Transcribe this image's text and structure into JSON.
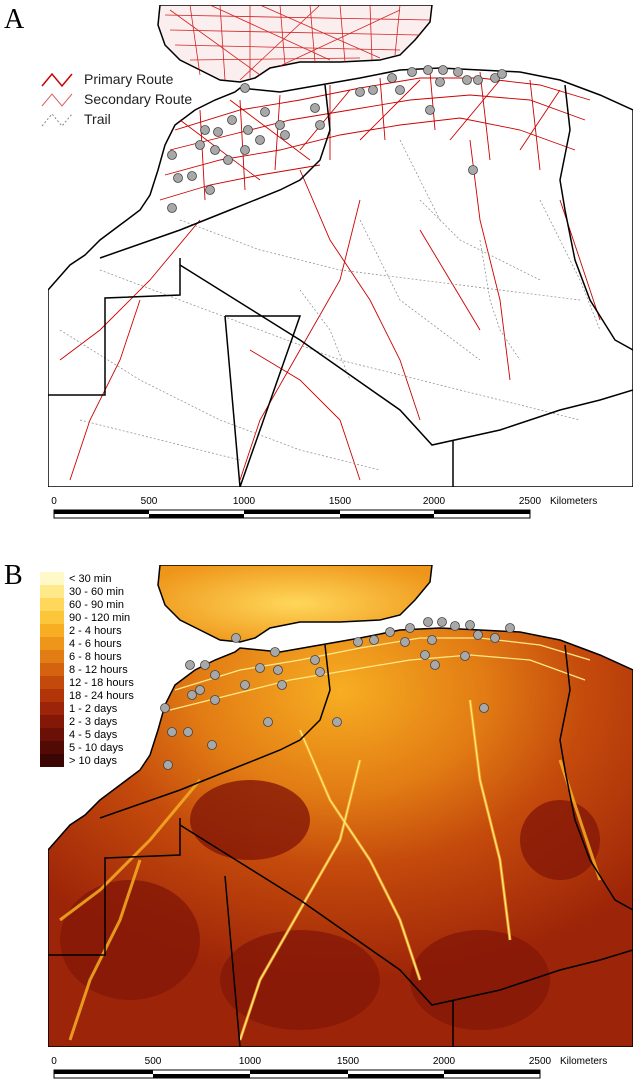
{
  "panel_a": {
    "letter": "A",
    "legend": [
      {
        "label": "Primary Route",
        "color": "#cc0000"
      },
      {
        "label": "Secondary Route",
        "color": "#e06060"
      },
      {
        "label": "Trail",
        "color": "#888888"
      }
    ],
    "scale": {
      "ticks": [
        "0",
        "500",
        "1000",
        "1500",
        "2000",
        "2500"
      ],
      "unit": "Kilometers"
    }
  },
  "panel_b": {
    "letter": "B",
    "legend": [
      {
        "label": "< 30 min",
        "color": "#fff8c8"
      },
      {
        "label": "30 - 60 min",
        "color": "#ffe98a"
      },
      {
        "label": "60 - 90 min",
        "color": "#ffd75a"
      },
      {
        "label": "90 - 120 min",
        "color": "#fcc63a"
      },
      {
        "label": "2 - 4 hours",
        "color": "#f7ae22"
      },
      {
        "label": "4 - 6 hours",
        "color": "#ee961a"
      },
      {
        "label": "6 - 8 hours",
        "color": "#e27c14"
      },
      {
        "label": "8 - 12 hours",
        "color": "#d4620f"
      },
      {
        "label": "12 - 18 hours",
        "color": "#c44a0c"
      },
      {
        "label": "18 - 24 hours",
        "color": "#b2350a"
      },
      {
        "label": "1 - 2 days",
        "color": "#9c2408"
      },
      {
        "label": "2 - 3 days",
        "color": "#841807"
      },
      {
        "label": "4 - 5 days",
        "color": "#6b1006"
      },
      {
        "label": "5 - 10 days",
        "color": "#520a04"
      },
      {
        "label": "> 10 days",
        "color": "#3a0502"
      }
    ],
    "scale": {
      "ticks": [
        "0",
        "500",
        "1000",
        "1500",
        "2000",
        "2500"
      ],
      "unit": "Kilometers"
    }
  },
  "colors": {
    "primary_route": "#cc0000",
    "point_fill": "#a8a8a8",
    "border": "#000000"
  }
}
